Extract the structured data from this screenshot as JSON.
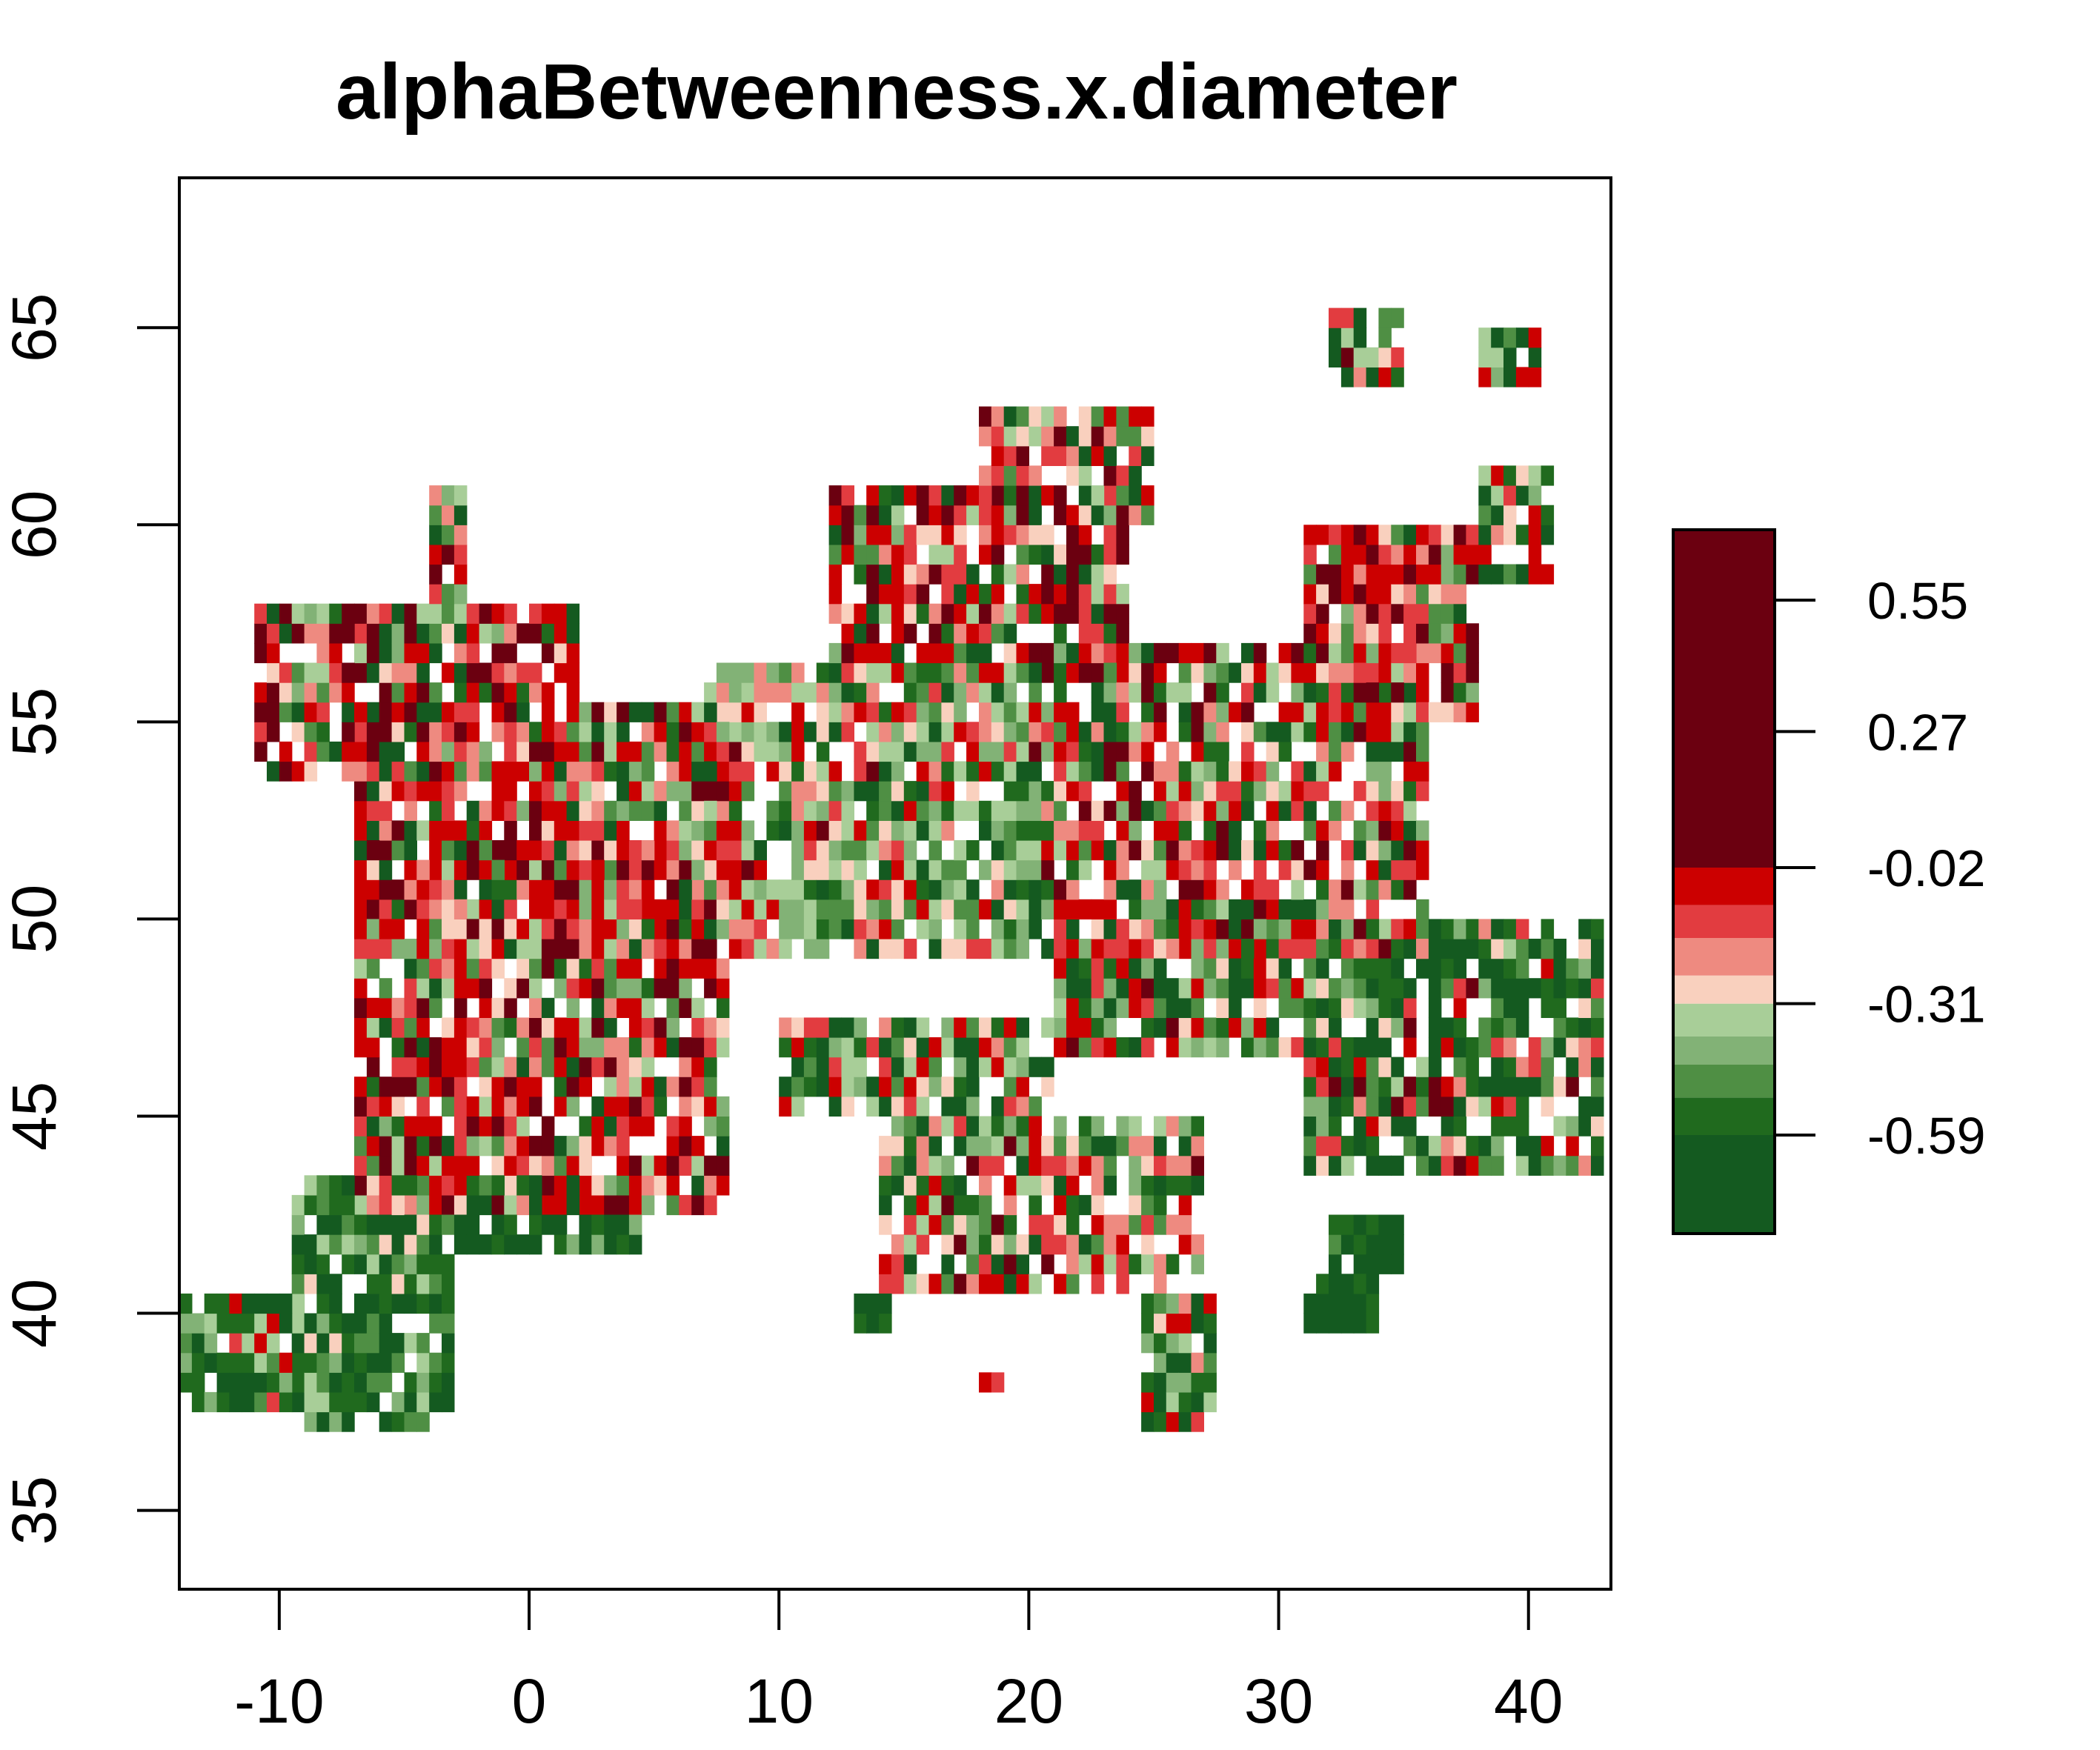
{
  "chart_data": {
    "type": "heatmap",
    "title": "alphaBetweenness.x.diameter",
    "xlabel": "",
    "ylabel": "",
    "xlim": [
      -14,
      43.3
    ],
    "ylim": [
      33,
      68.8
    ],
    "x_ticks": [
      -10,
      0,
      10,
      20,
      30,
      40
    ],
    "y_ticks": [
      35,
      40,
      45,
      50,
      55,
      60,
      65
    ],
    "grid": false,
    "legend": {
      "position": "right",
      "range": [
        -0.8,
        0.7
      ],
      "tick_values": [
        0.55,
        0.27,
        -0.02,
        -0.31,
        -0.59
      ],
      "tick_labels": [
        "0.55",
        "0.27",
        "-0.02",
        "-0.31",
        "-0.59"
      ],
      "bands": [
        {
          "from": -0.8,
          "to": -0.59,
          "color": "#145a20"
        },
        {
          "from": -0.59,
          "to": -0.51,
          "color": "#206a1e"
        },
        {
          "from": -0.51,
          "to": -0.44,
          "color": "#4f8f44"
        },
        {
          "from": -0.44,
          "to": -0.38,
          "color": "#82b276"
        },
        {
          "from": -0.38,
          "to": -0.31,
          "color": "#a8ce98"
        },
        {
          "from": -0.31,
          "to": -0.25,
          "color": "#f9d0be"
        },
        {
          "from": -0.25,
          "to": -0.17,
          "color": "#ee8a80"
        },
        {
          "from": -0.17,
          "to": -0.1,
          "color": "#e23c40"
        },
        {
          "from": -0.1,
          "to": -0.02,
          "color": "#cc0000"
        },
        {
          "from": -0.02,
          "to": 0.7,
          "color": "#6b0010"
        }
      ]
    },
    "cell_size_degrees": 0.5,
    "regions": [
      {
        "x": [
          -7,
          2
        ],
        "y": [
          50,
          58
        ],
        "weights": [
          3,
          1,
          1,
          1,
          1,
          1,
          2,
          3,
          6,
          4
        ]
      },
      {
        "x": [
          -11,
          -6
        ],
        "y": [
          53.5,
          58
        ],
        "weights": [
          2,
          1,
          2,
          1,
          1,
          2,
          1,
          2,
          3,
          3
        ]
      },
      {
        "x": [
          -4,
          -2.5
        ],
        "y": [
          58,
          61
        ],
        "weights": [
          4,
          2,
          2,
          1,
          1,
          0,
          1,
          1,
          2,
          1
        ]
      },
      {
        "x": [
          -7,
          8
        ],
        "y": [
          42.5,
          52
        ],
        "weights": [
          2,
          1,
          2,
          2,
          2,
          2,
          2,
          3,
          6,
          4
        ]
      },
      {
        "x": [
          1.5,
          9
        ],
        "y": [
          49,
          55.5
        ],
        "weights": [
          3,
          2,
          3,
          3,
          3,
          2,
          2,
          3,
          4,
          2
        ]
      },
      {
        "x": [
          7,
          20
        ],
        "y": [
          49,
          56.5
        ],
        "weights": [
          4,
          3,
          4,
          5,
          6,
          2,
          2,
          2,
          2,
          1
        ]
      },
      {
        "x": [
          12,
          24
        ],
        "y": [
          56,
          61
        ],
        "weights": [
          2,
          1,
          1,
          1,
          1,
          2,
          2,
          3,
          5,
          4
        ]
      },
      {
        "x": [
          18,
          25
        ],
        "y": [
          60,
          63
        ],
        "weights": [
          2,
          1,
          2,
          2,
          2,
          2,
          2,
          2,
          2,
          1
        ]
      },
      {
        "x": [
          20,
          36
        ],
        "y": [
          49,
          57
        ],
        "weights": [
          3,
          2,
          2,
          2,
          2,
          2,
          2,
          3,
          5,
          3
        ]
      },
      {
        "x": [
          31,
          38
        ],
        "y": [
          55,
          60
        ],
        "weights": [
          1,
          1,
          1,
          1,
          1,
          3,
          3,
          4,
          4,
          3
        ]
      },
      {
        "x": [
          21,
          31
        ],
        "y": [
          46.5,
          50
        ],
        "weights": [
          5,
          3,
          3,
          2,
          1,
          1,
          1,
          2,
          3,
          1
        ]
      },
      {
        "x": [
          31,
          43
        ],
        "y": [
          43.5,
          50
        ],
        "weights": [
          8,
          4,
          2,
          1,
          1,
          1,
          1,
          1,
          1,
          1
        ]
      },
      {
        "x": [
          10,
          21
        ],
        "y": [
          45,
          47.5
        ],
        "weights": [
          4,
          2,
          2,
          2,
          2,
          1,
          1,
          2,
          3,
          1
        ]
      },
      {
        "x": [
          14,
          27
        ],
        "y": [
          40.5,
          45
        ],
        "weights": [
          3,
          2,
          2,
          2,
          2,
          3,
          3,
          2,
          2,
          1
        ]
      },
      {
        "x": [
          -9.5,
          -3
        ],
        "y": [
          37,
          43.5
        ],
        "weights": [
          6,
          5,
          3,
          2,
          2,
          1,
          0,
          0,
          0,
          0
        ]
      },
      {
        "x": [
          -3,
          4.5
        ],
        "y": [
          41.5,
          43.5
        ],
        "weights": [
          7,
          4,
          2,
          1,
          0,
          0,
          0,
          0,
          0,
          0
        ]
      },
      {
        "x": [
          -14,
          -9
        ],
        "y": [
          37.5,
          40.5
        ],
        "weights": [
          5,
          4,
          3,
          2,
          1,
          0,
          0,
          1,
          1,
          0
        ]
      },
      {
        "x": [
          32,
          35
        ],
        "y": [
          41,
          42.5
        ],
        "weights": [
          7,
          3,
          1,
          0,
          0,
          0,
          0,
          0,
          0,
          0
        ]
      },
      {
        "x": [
          31,
          34
        ],
        "y": [
          39.5,
          41
        ],
        "weights": [
          7,
          3,
          1,
          0,
          0,
          0,
          0,
          0,
          0,
          0
        ]
      },
      {
        "x": [
          32,
          35
        ],
        "y": [
          63.5,
          65.5
        ],
        "weights": [
          3,
          1,
          1,
          1,
          1,
          1,
          1,
          1,
          1,
          1
        ]
      },
      {
        "x": [
          38,
          40.5
        ],
        "y": [
          63.5,
          65
        ],
        "weights": [
          2,
          1,
          1,
          1,
          1,
          0,
          0,
          0,
          1,
          0
        ]
      },
      {
        "x": [
          38,
          41
        ],
        "y": [
          58.5,
          61.5
        ],
        "weights": [
          2,
          1,
          1,
          1,
          1,
          1,
          1,
          1,
          2,
          0
        ]
      },
      {
        "x": [
          24.5,
          27.5
        ],
        "y": [
          37,
          40.5
        ],
        "weights": [
          3,
          2,
          2,
          2,
          2,
          1,
          1,
          1,
          2,
          0
        ]
      },
      {
        "x": [
          18,
          19
        ],
        "y": [
          38,
          38.5
        ],
        "weights": [
          1,
          0,
          0,
          0,
          0,
          0,
          0,
          1,
          2,
          0
        ]
      },
      {
        "x": [
          13,
          14.5
        ],
        "y": [
          39.5,
          40.5
        ],
        "weights": [
          8,
          1,
          0,
          0,
          0,
          0,
          0,
          0,
          0,
          0
        ]
      },
      {
        "x": [
          22,
          23
        ],
        "y": [
          61.5,
          62.5
        ],
        "weights": [
          8,
          1,
          0,
          0,
          0,
          0,
          0,
          0,
          0,
          0
        ]
      }
    ]
  }
}
